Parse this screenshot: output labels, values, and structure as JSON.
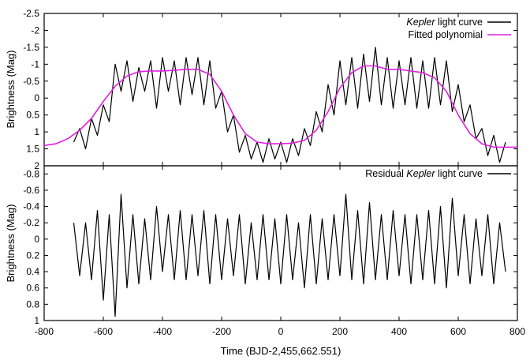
{
  "chart_data": [
    {
      "type": "line",
      "ylabel": "Brightness (Mag)",
      "xlim": [
        -800,
        800
      ],
      "ylim": [
        -2.5,
        2
      ],
      "y_inverted": true,
      "yticks": [
        "-2.5",
        "-2",
        "-1.5",
        "-1",
        "-0.5",
        "0",
        "0.5",
        "1",
        "1.5",
        "2"
      ],
      "legend_position": "top-right",
      "series": [
        {
          "name": "Kepler light curve",
          "name_parts": [
            {
              "text": "Kepler",
              "italic": true
            },
            {
              "text": " light curve",
              "italic": false
            }
          ],
          "color": "#000000",
          "x": [
            -700,
            -680,
            -660,
            -640,
            -620,
            -600,
            -580,
            -560,
            -540,
            -520,
            -500,
            -480,
            -460,
            -440,
            -420,
            -400,
            -380,
            -360,
            -340,
            -320,
            -300,
            -280,
            -260,
            -240,
            -220,
            -200,
            -180,
            -160,
            -140,
            -120,
            -100,
            -80,
            -60,
            -40,
            -20,
            0,
            20,
            40,
            60,
            80,
            100,
            120,
            140,
            160,
            180,
            200,
            220,
            240,
            260,
            280,
            300,
            320,
            340,
            360,
            380,
            400,
            420,
            440,
            460,
            480,
            500,
            520,
            540,
            560,
            580,
            600,
            620,
            640,
            660,
            680,
            700,
            720,
            740,
            760
          ],
          "y": [
            1.3,
            0.9,
            1.5,
            0.6,
            1.1,
            0.2,
            0.7,
            -1.0,
            -0.2,
            -1.1,
            0.1,
            -0.9,
            -0.2,
            -1.1,
            0.3,
            -1.2,
            -0.2,
            -1.1,
            0.2,
            -1.2,
            -0.1,
            -1.2,
            0.2,
            -1.1,
            0.3,
            -0.2,
            1.0,
            0.5,
            1.6,
            1.1,
            1.8,
            1.3,
            1.9,
            1.2,
            1.8,
            1.3,
            1.9,
            1.2,
            1.7,
            0.9,
            1.4,
            0.4,
            1.0,
            -0.4,
            0.5,
            -1.1,
            0.2,
            -1.2,
            0.3,
            -1.3,
            0.1,
            -1.5,
            0.2,
            -1.2,
            0.3,
            -1.1,
            0.2,
            -1.2,
            0.3,
            -1.1,
            0.3,
            -1.2,
            0.2,
            -1.1,
            0.4,
            -0.4,
            0.7,
            0.2,
            1.2,
            0.9,
            1.7,
            1.1,
            1.9,
            1.3
          ]
        },
        {
          "name": "Fitted polynomial",
          "color": "#e020e0",
          "x": [
            -800,
            -760,
            -720,
            -680,
            -640,
            -600,
            -560,
            -520,
            -480,
            -440,
            -400,
            -360,
            -320,
            -280,
            -240,
            -200,
            -160,
            -120,
            -80,
            -40,
            0,
            40,
            80,
            120,
            160,
            200,
            240,
            280,
            320,
            360,
            400,
            440,
            480,
            520,
            560,
            600,
            640,
            680,
            720,
            760,
            800
          ],
          "y": [
            1.4,
            1.35,
            1.2,
            0.95,
            0.6,
            0.1,
            -0.35,
            -0.65,
            -0.78,
            -0.8,
            -0.8,
            -0.82,
            -0.85,
            -0.85,
            -0.7,
            -0.2,
            0.5,
            1.05,
            1.3,
            1.35,
            1.35,
            1.33,
            1.25,
            0.95,
            0.4,
            -0.3,
            -0.75,
            -0.95,
            -0.95,
            -0.85,
            -0.85,
            -0.8,
            -0.75,
            -0.6,
            -0.2,
            0.5,
            1.05,
            1.35,
            1.45,
            1.45,
            1.45
          ]
        }
      ]
    },
    {
      "type": "line",
      "xlabel": "Time (BJD-2,455,662.551)",
      "ylabel": "Brightness (Mag)",
      "xlim": [
        -800,
        800
      ],
      "ylim": [
        -0.9,
        1
      ],
      "y_inverted": true,
      "xticks": [
        "-800",
        "-600",
        "-400",
        "-200",
        "0",
        "200",
        "400",
        "600",
        "800"
      ],
      "yticks": [
        "-0.8",
        "-0.6",
        "-0.4",
        "-0.2",
        "0",
        "0.2",
        "0.4",
        "0.6",
        "0.8",
        "1"
      ],
      "legend_position": "top-right",
      "series": [
        {
          "name": "Residual Kepler light curve",
          "name_parts": [
            {
              "text": "Residual ",
              "italic": false
            },
            {
              "text": "Kepler",
              "italic": true
            },
            {
              "text": " light curve",
              "italic": false
            }
          ],
          "color": "#000000",
          "x": [
            -700,
            -680,
            -660,
            -640,
            -620,
            -600,
            -580,
            -560,
            -540,
            -520,
            -500,
            -480,
            -460,
            -440,
            -420,
            -400,
            -380,
            -360,
            -340,
            -320,
            -300,
            -280,
            -260,
            -240,
            -220,
            -200,
            -180,
            -160,
            -140,
            -120,
            -100,
            -80,
            -60,
            -40,
            -20,
            0,
            20,
            40,
            60,
            80,
            100,
            120,
            140,
            160,
            180,
            200,
            220,
            240,
            260,
            280,
            300,
            320,
            340,
            360,
            380,
            400,
            420,
            440,
            460,
            480,
            500,
            520,
            540,
            560,
            580,
            600,
            620,
            640,
            660,
            680,
            700,
            720,
            740,
            760
          ],
          "y": [
            -0.2,
            0.45,
            -0.2,
            0.5,
            -0.35,
            0.75,
            -0.3,
            0.95,
            -0.55,
            0.6,
            -0.3,
            0.55,
            -0.25,
            0.5,
            -0.4,
            0.4,
            -0.3,
            0.5,
            -0.35,
            0.5,
            -0.3,
            0.45,
            -0.35,
            0.55,
            -0.3,
            0.5,
            -0.25,
            0.45,
            -0.3,
            0.55,
            -0.2,
            0.5,
            -0.3,
            0.5,
            -0.25,
            0.55,
            -0.3,
            0.5,
            -0.2,
            0.6,
            -0.3,
            0.55,
            -0.25,
            0.5,
            -0.3,
            0.45,
            -0.55,
            0.5,
            -0.35,
            0.55,
            -0.45,
            0.5,
            -0.3,
            0.5,
            -0.35,
            0.45,
            -0.3,
            0.55,
            -0.3,
            0.5,
            -0.35,
            0.55,
            -0.4,
            0.6,
            -0.5,
            0.45,
            -0.3,
            0.55,
            -0.25,
            0.45,
            -0.3,
            0.55,
            -0.2,
            0.4
          ]
        }
      ]
    }
  ]
}
